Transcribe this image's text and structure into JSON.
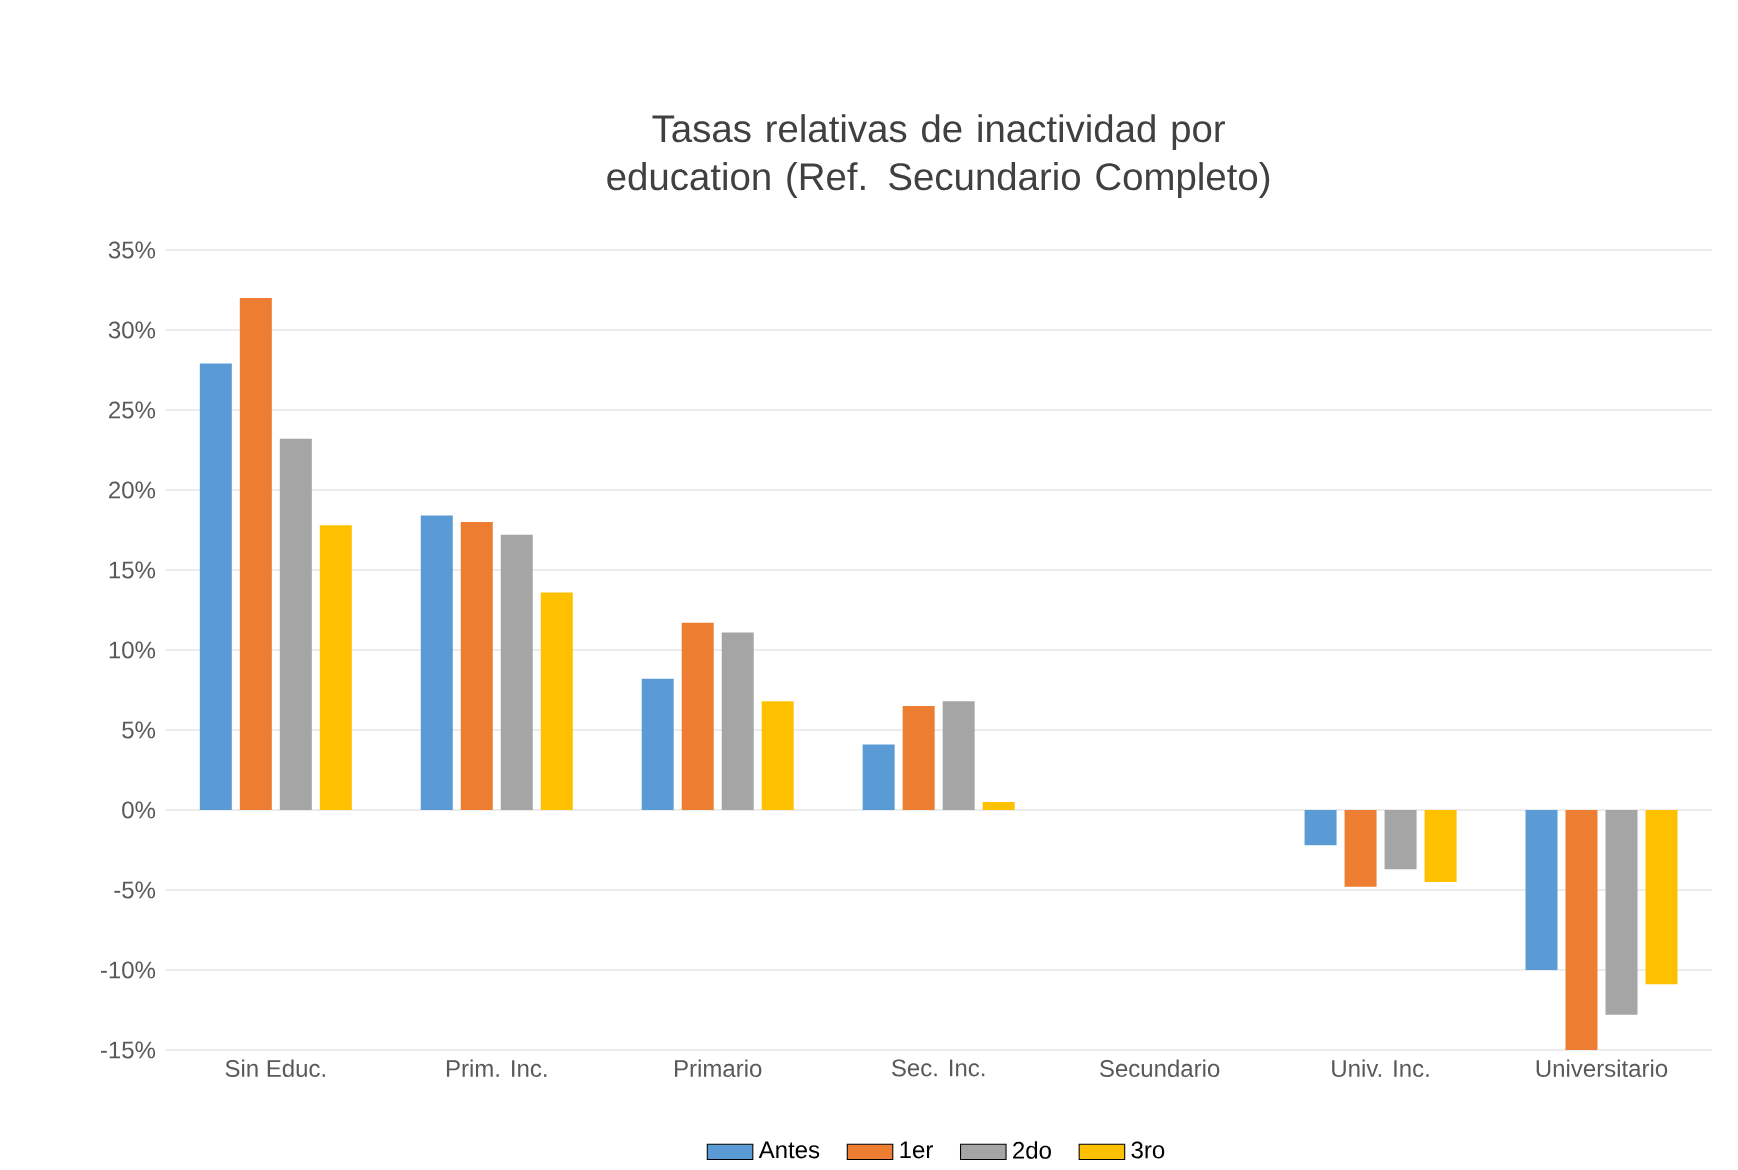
{
  "chart_data": {
    "type": "bar",
    "title": "Tasas relativas de inactividad por education (Ref. Secundario Completo)",
    "categories": [
      "Sin Educ.",
      "Prim. Inc.",
      "Primario",
      "Sec. Inc.",
      "Secundario",
      "Univ. Inc.",
      "Universitario"
    ],
    "series": [
      {
        "name": "Antes",
        "color": "#5b9bd5",
        "values": [
          27.9,
          18.4,
          8.2,
          4.1,
          0,
          -2.2,
          -10.0
        ]
      },
      {
        "name": "1er",
        "color": "#ed7d31",
        "values": [
          32.0,
          18.0,
          11.7,
          6.5,
          0,
          -4.8,
          -15.0
        ]
      },
      {
        "name": "2do",
        "color": "#a5a5a5",
        "values": [
          23.2,
          17.2,
          11.1,
          6.8,
          0,
          -3.7,
          -12.8
        ]
      },
      {
        "name": "3ro",
        "color": "#ffc000",
        "values": [
          17.8,
          13.6,
          6.8,
          0.5,
          0,
          -4.5,
          -10.9
        ]
      }
    ],
    "ylim": [
      -15,
      35
    ],
    "yticks": [
      {
        "value": -15,
        "label": "-15%"
      },
      {
        "value": -10,
        "label": "-10%"
      },
      {
        "value": -5,
        "label": "-5%"
      },
      {
        "value": 0,
        "label": "0%"
      },
      {
        "value": 5,
        "label": "5%"
      },
      {
        "value": 10,
        "label": "10%"
      },
      {
        "value": 15,
        "label": "15%"
      },
      {
        "value": 20,
        "label": "20%"
      },
      {
        "value": 25,
        "label": "25%"
      },
      {
        "value": 30,
        "label": "30%"
      },
      {
        "value": 35,
        "label": "35%"
      }
    ],
    "grid": "y",
    "legend": "bottom"
  }
}
